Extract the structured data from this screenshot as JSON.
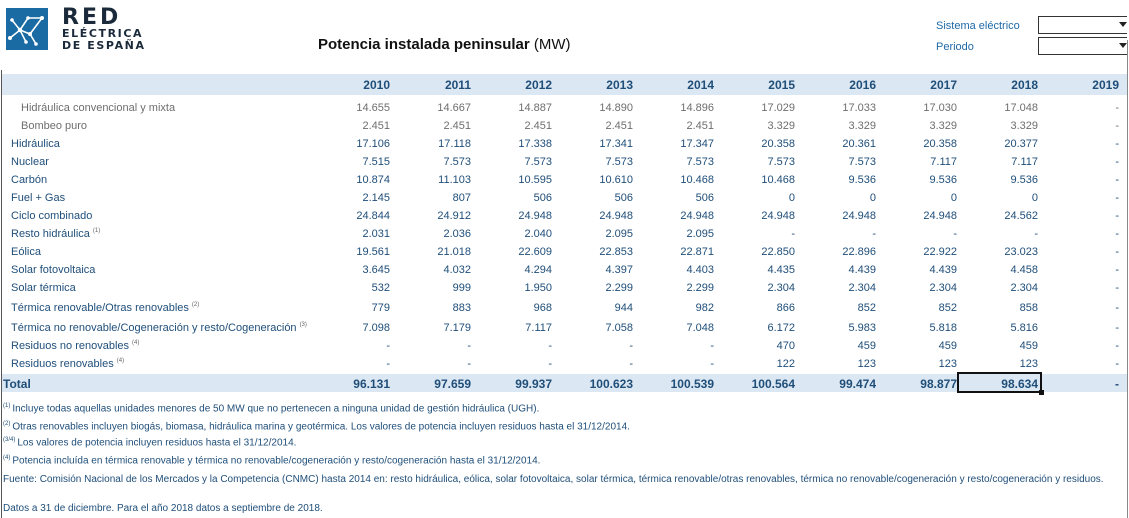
{
  "brand": {
    "line1": "RED",
    "line2": "ELÉCTRICA",
    "line3": "DE ESPAÑA",
    "color": "#1a6aa3"
  },
  "title": {
    "bold": "Potencia instalada peninsular",
    "unit": " (MW)"
  },
  "controls": [
    {
      "label": "Sistema eléctrico",
      "value": ""
    },
    {
      "label": "Periodo",
      "value": ""
    }
  ],
  "years": [
    "2010",
    "2011",
    "2012",
    "2013",
    "2014",
    "2015",
    "2016",
    "2017",
    "2018",
    "2019"
  ],
  "rows": [
    {
      "label": "Hidráulica convencional y mixta",
      "note": "",
      "sub": true,
      "values": [
        "14.655",
        "14.667",
        "14.887",
        "14.890",
        "14.896",
        "17.029",
        "17.033",
        "17.030",
        "17.048",
        "-"
      ]
    },
    {
      "label": "Bombeo puro",
      "note": "",
      "sub": true,
      "values": [
        "2.451",
        "2.451",
        "2.451",
        "2.451",
        "2.451",
        "3.329",
        "3.329",
        "3.329",
        "3.329",
        "-"
      ]
    },
    {
      "label": "Hidráulica",
      "note": "",
      "sub": false,
      "values": [
        "17.106",
        "17.118",
        "17.338",
        "17.341",
        "17.347",
        "20.358",
        "20.361",
        "20.358",
        "20.377",
        "-"
      ]
    },
    {
      "label": "Nuclear",
      "note": "",
      "sub": false,
      "values": [
        "7.515",
        "7.573",
        "7.573",
        "7.573",
        "7.573",
        "7.573",
        "7.573",
        "7.117",
        "7.117",
        "-"
      ]
    },
    {
      "label": "Carbón",
      "note": "",
      "sub": false,
      "values": [
        "10.874",
        "11.103",
        "10.595",
        "10.610",
        "10.468",
        "10.468",
        "9.536",
        "9.536",
        "9.536",
        "-"
      ]
    },
    {
      "label": "Fuel + Gas",
      "note": "",
      "sub": false,
      "values": [
        "2.145",
        "807",
        "506",
        "506",
        "506",
        "0",
        "0",
        "0",
        "0",
        "-"
      ]
    },
    {
      "label": "Ciclo combinado",
      "note": "",
      "sub": false,
      "values": [
        "24.844",
        "24.912",
        "24.948",
        "24.948",
        "24.948",
        "24.948",
        "24.948",
        "24.948",
        "24.562",
        "-"
      ]
    },
    {
      "label": "Resto hidráulica",
      "note": "(1)",
      "sub": false,
      "values": [
        "2.031",
        "2.036",
        "2.040",
        "2.095",
        "2.095",
        "-",
        "-",
        "-",
        "-",
        "-"
      ]
    },
    {
      "label": "Eólica",
      "note": "",
      "sub": false,
      "values": [
        "19.561",
        "21.018",
        "22.609",
        "22.853",
        "22.871",
        "22.850",
        "22.896",
        "22.922",
        "23.023",
        "-"
      ]
    },
    {
      "label": "Solar fotovoltaica",
      "note": "",
      "sub": false,
      "values": [
        "3.645",
        "4.032",
        "4.294",
        "4.397",
        "4.403",
        "4.435",
        "4.439",
        "4.439",
        "4.458",
        "-"
      ]
    },
    {
      "label": "Solar térmica",
      "note": "",
      "sub": false,
      "values": [
        "532",
        "999",
        "1.950",
        "2.299",
        "2.299",
        "2.304",
        "2.304",
        "2.304",
        "2.304",
        "-"
      ]
    },
    {
      "label": "Térmica renovable/Otras renovables",
      "note": "(2)",
      "sub": false,
      "values": [
        "779",
        "883",
        "968",
        "944",
        "982",
        "866",
        "852",
        "852",
        "858",
        "-"
      ]
    },
    {
      "label": "Térmica no renovable/Cogeneración y resto/Cogeneración",
      "note": "(3)",
      "sub": false,
      "values": [
        "7.098",
        "7.179",
        "7.117",
        "7.058",
        "7.048",
        "6.172",
        "5.983",
        "5.818",
        "5.816",
        "-"
      ]
    },
    {
      "label": "Residuos no renovables",
      "note": "(4)",
      "sub": false,
      "values": [
        "-",
        "-",
        "-",
        "-",
        "-",
        "470",
        "459",
        "459",
        "459",
        "-"
      ]
    },
    {
      "label": "Residuos renovables",
      "note": "(4)",
      "sub": false,
      "values": [
        "-",
        "-",
        "-",
        "-",
        "-",
        "122",
        "123",
        "123",
        "123",
        "-"
      ]
    }
  ],
  "total": {
    "label": "Total",
    "values": [
      "96.131",
      "97.659",
      "99.937",
      "100.623",
      "100.539",
      "100.564",
      "99.474",
      "98.877",
      "98.634",
      "-"
    ]
  },
  "notes": [
    {
      "mark": "(1)",
      "text": "Incluye todas aquellas unidades menores de 50 MW que no pertenecen a ninguna unidad de gestión hidráulica (UGH)."
    },
    {
      "mark": "(2)",
      "text": "Otras renovables incluyen biogás, biomasa, hidráulica marina y geotérmica. Los valores de potencia incluyen residuos hasta el 31/12/2014."
    },
    {
      "mark": "(3/4)",
      "text": "Los valores de potencia incluyen residuos hasta el 31/12/2014."
    },
    {
      "mark": "(4)",
      "text": "Potencia incluída en térmica renovable y térmica no renovable/cogeneración y resto/cogeneración hasta el 31/12/2014."
    }
  ],
  "source": "Fuente: Comisión Nacional de los Mercados y la Competencia (CNMC) hasta 2014 en: resto hidráulica, eólica, solar fotovoltaica, solar térmica, térmica renovable/otras renovables, térmica no renovable/cogeneración y resto/cogeneración y residuos.",
  "footer": "Datos a 31 de diciembre. Para el año 2018 datos a septiembre de 2018."
}
